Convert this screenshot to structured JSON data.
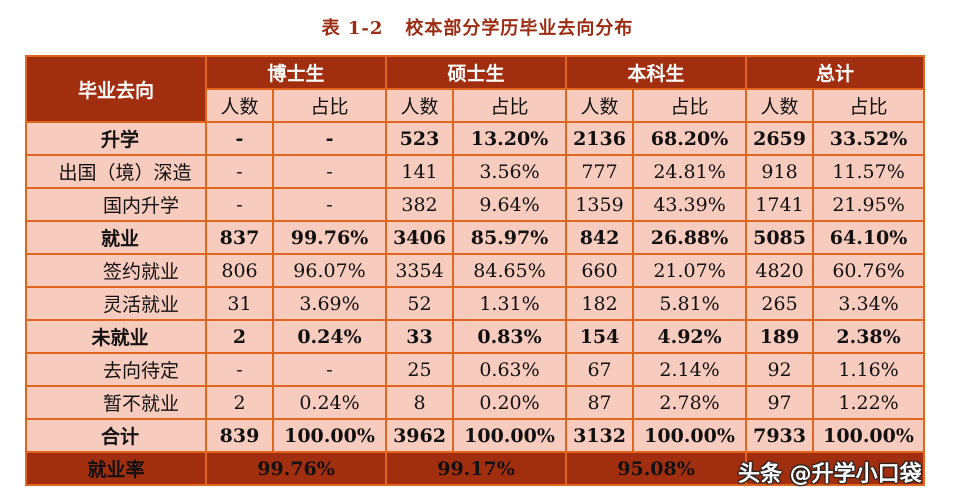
{
  "caption": {
    "number": "表 1-2",
    "title": "校本部分学历毕业去向分布"
  },
  "header": {
    "row_label": "毕业去向",
    "groups": [
      "博士生",
      "硕士生",
      "本科生",
      "总计"
    ],
    "sub": {
      "count": "人数",
      "ratio": "占比"
    }
  },
  "rows": [
    {
      "label": "升学",
      "level": 0,
      "bold": true,
      "values": [
        "-",
        "-",
        "523",
        "13.20%",
        "2136",
        "68.20%",
        "2659",
        "33.52%"
      ]
    },
    {
      "label": "出国（境）深造",
      "level": 1,
      "bold": false,
      "values": [
        "-",
        "-",
        "141",
        "3.56%",
        "777",
        "24.81%",
        "918",
        "11.57%"
      ]
    },
    {
      "label": "国内升学",
      "level": 2,
      "bold": false,
      "values": [
        "-",
        "-",
        "382",
        "9.64%",
        "1359",
        "43.39%",
        "1741",
        "21.95%"
      ]
    },
    {
      "label": "就业",
      "level": 0,
      "bold": true,
      "values": [
        "837",
        "99.76%",
        "3406",
        "85.97%",
        "842",
        "26.88%",
        "5085",
        "64.10%"
      ]
    },
    {
      "label": "签约就业",
      "level": 2,
      "bold": false,
      "values": [
        "806",
        "96.07%",
        "3354",
        "84.65%",
        "660",
        "21.07%",
        "4820",
        "60.76%"
      ]
    },
    {
      "label": "灵活就业",
      "level": 2,
      "bold": false,
      "values": [
        "31",
        "3.69%",
        "52",
        "1.31%",
        "182",
        "5.81%",
        "265",
        "3.34%"
      ]
    },
    {
      "label": "未就业",
      "level": 0,
      "bold": true,
      "values": [
        "2",
        "0.24%",
        "33",
        "0.83%",
        "154",
        "4.92%",
        "189",
        "2.38%"
      ]
    },
    {
      "label": "去向待定",
      "level": 2,
      "bold": false,
      "values": [
        "-",
        "-",
        "25",
        "0.63%",
        "67",
        "2.14%",
        "92",
        "1.16%"
      ]
    },
    {
      "label": "暂不就业",
      "level": 2,
      "bold": false,
      "values": [
        "2",
        "0.24%",
        "8",
        "0.20%",
        "87",
        "2.78%",
        "97",
        "1.22%"
      ]
    },
    {
      "label": "合计",
      "level": 0,
      "bold": true,
      "values": [
        "839",
        "100.00%",
        "3962",
        "100.00%",
        "3132",
        "100.00%",
        "7933",
        "100.00%"
      ]
    }
  ],
  "employment_rate": {
    "label": "就业率",
    "values": [
      "99.76%",
      "99.17%",
      "95.08%",
      ""
    ]
  },
  "watermark": "头条 @升学小口袋",
  "colors": {
    "header_dark": "#a22e10",
    "cell_fill": "#f8cbbf",
    "border": "#e0661f",
    "caption": "#9b2b12"
  }
}
